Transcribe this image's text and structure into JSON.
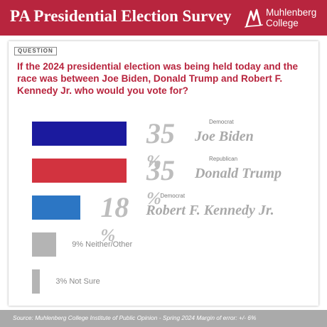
{
  "header": {
    "title": "PA Presidential Election Survey",
    "logo_line1": "Muhlenberg",
    "logo_line2": "College"
  },
  "question": {
    "badge": "QUESTION",
    "text": "If the 2024 presidential election was being held today and the race was between Joe Biden, Donald Trump and Robert F. Kennedy Jr. who would you vote for?"
  },
  "chart_data": {
    "type": "bar",
    "orientation": "horizontal",
    "categories": [
      "Joe Biden",
      "Donald Trump",
      "Robert F. Kennedy Jr.",
      "Neither/Other",
      "Not Sure"
    ],
    "values": [
      35,
      35,
      18,
      9,
      3
    ],
    "unit": "%",
    "parties": [
      "Democrat",
      "Republican",
      "Democrat",
      "",
      ""
    ],
    "colors": [
      "#1b1a9e",
      "#d2333f",
      "#2c76c4",
      "#b4b4b4",
      "#b4b4b4"
    ],
    "labels": [
      {
        "pct": "35",
        "sign": "%",
        "name": "Joe Biden"
      },
      {
        "pct": "35",
        "sign": "%",
        "name": "Donald Trump"
      },
      {
        "pct": "18",
        "sign": "%",
        "name": "Robert F. Kennedy Jr."
      },
      {
        "text": "9% Neither/Other"
      },
      {
        "text": "3% Not Sure"
      }
    ]
  },
  "footer": {
    "source": "Source: Muhlenberg College Institute of Public Opinion - Spring 2024 Margin of error: +/- 6%"
  }
}
